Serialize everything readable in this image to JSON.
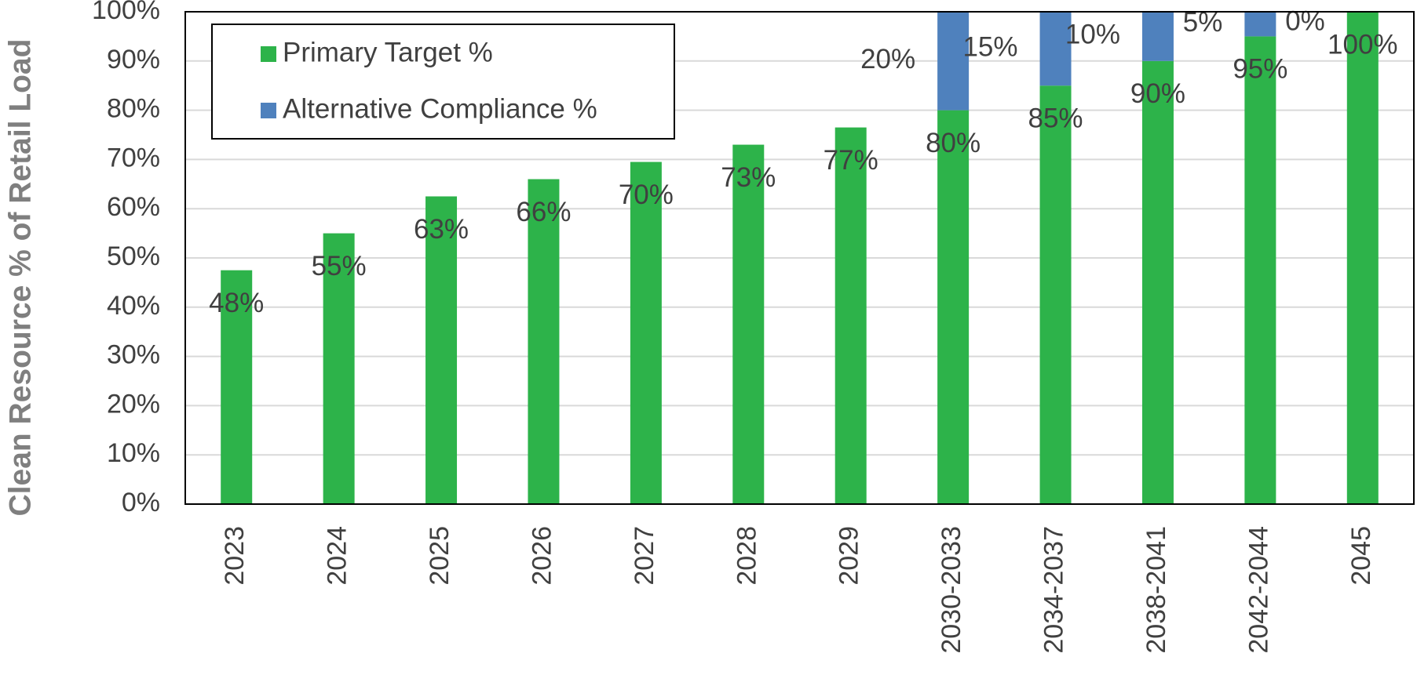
{
  "chart_data": {
    "type": "stacked_bar",
    "y_axis_label": "Clean Resource % of Retail Load",
    "categories": [
      "2023",
      "2024",
      "2025",
      "2026",
      "2027",
      "2028",
      "2029",
      "2030-2033",
      "2034-2037",
      "2038-2041",
      "2042-2044",
      "2045"
    ],
    "series": [
      {
        "name": "Primary Target %",
        "color": "#2db34a",
        "values": [
          47.5,
          55,
          62.5,
          66,
          69.5,
          73,
          76.5,
          80,
          85,
          90,
          95,
          100
        ],
        "value_labels": [
          "48%",
          "55%",
          "63%",
          "66%",
          "70%",
          "73%",
          "77%",
          "80%",
          "85%",
          "90%",
          "95%",
          "100%"
        ]
      },
      {
        "name": "Alternative Compliance %",
        "color": "#4f81bd",
        "values": [
          null,
          null,
          null,
          null,
          null,
          null,
          null,
          20,
          15,
          10,
          5,
          0
        ],
        "value_labels": [
          null,
          null,
          null,
          null,
          null,
          null,
          null,
          "20%",
          "15%",
          "10%",
          "5%",
          "0%"
        ]
      }
    ],
    "ylim": [
      0,
      100
    ],
    "yticks": [
      {
        "value": 0,
        "label": "0%"
      },
      {
        "value": 10,
        "label": "10%"
      },
      {
        "value": 20,
        "label": "20%"
      },
      {
        "value": 30,
        "label": "30%"
      },
      {
        "value": 40,
        "label": "40%"
      },
      {
        "value": 50,
        "label": "50%"
      },
      {
        "value": 60,
        "label": "60%"
      },
      {
        "value": 70,
        "label": "70%"
      },
      {
        "value": 80,
        "label": "80%"
      },
      {
        "value": 90,
        "label": "90%"
      },
      {
        "value": 100,
        "label": "100%"
      }
    ],
    "grid": true,
    "legend": "upper left"
  }
}
